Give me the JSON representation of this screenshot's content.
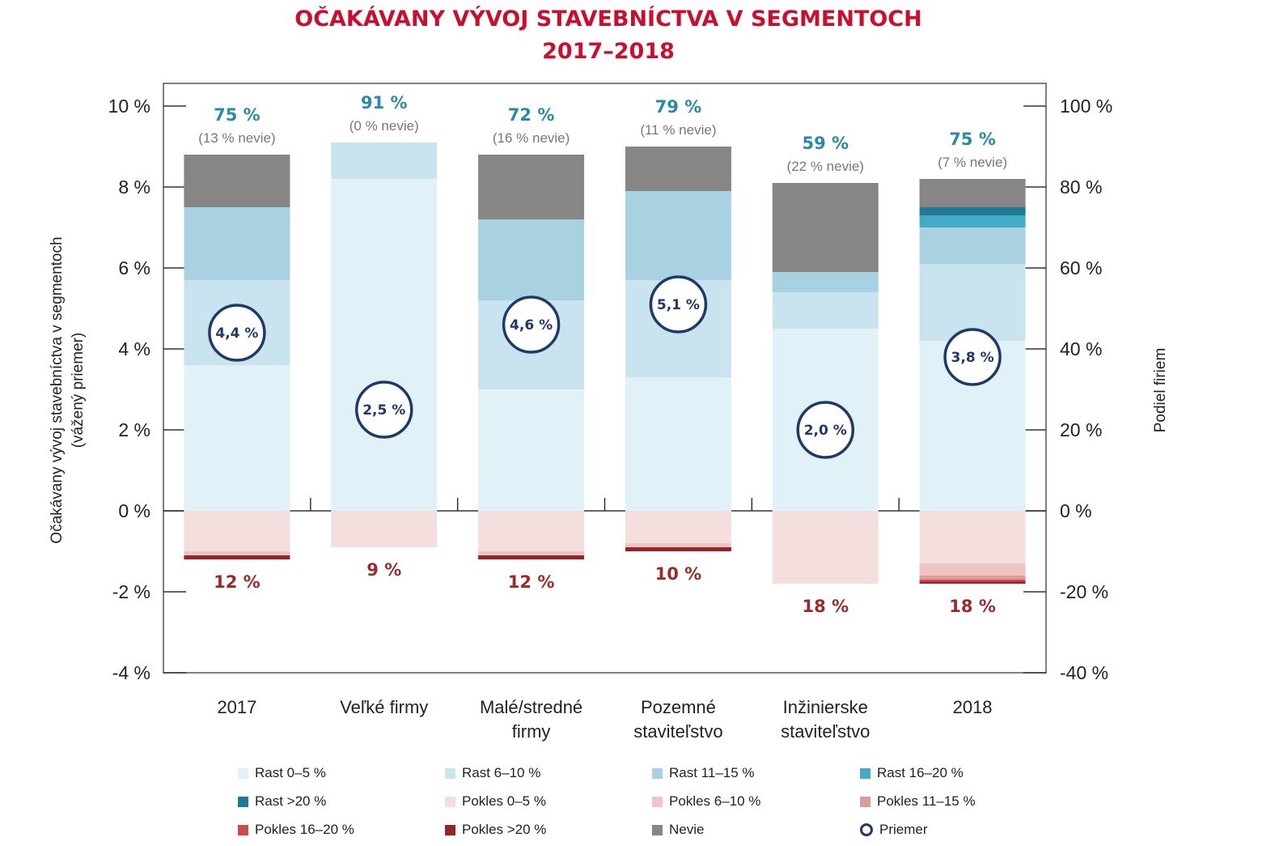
{
  "title_line1": "OČAKÁVANY VÝVOJ STAVEBNÍCTVA V SEGMENTOCH",
  "title_line2": "2017–2018",
  "chart_data": {
    "type": "bar",
    "stacked": true,
    "categories": [
      "2017",
      "Veľké firmy",
      "Malé/stredné firmy",
      "Pozemné staviteľstvo",
      "Inžinierske staviteľstvo",
      "2018"
    ],
    "category_lines": [
      [
        "2017"
      ],
      [
        "Veľké firmy"
      ],
      [
        "Malé/stredné",
        "firmy"
      ],
      [
        "Pozemné",
        "staviteľstvo"
      ],
      [
        "Inžinierske",
        "staviteľstvo"
      ],
      [
        "2018"
      ]
    ],
    "ylabel_line1": "Očakávany vývoj stavebníctva v segmentoch",
    "ylabel_line2": "(vážený priemer)",
    "y2label": "Podiel firiem",
    "ylim": [
      -4,
      10
    ],
    "y_ticks": [
      "10 %",
      "8 %",
      "6 %",
      "4 %",
      "2 %",
      "0 %",
      "-2 %",
      "-4 %"
    ],
    "y2lim": [
      -40,
      100
    ],
    "y2_ticks": [
      "100 %",
      "80 %",
      "60 %",
      "40 %",
      "20 %",
      "0 %",
      "-20 %",
      "-40 %"
    ],
    "grid": false,
    "legend_position": "bottom",
    "series": [
      {
        "name": "Rast 0–5 %",
        "color": "#e1f1f8",
        "values": [
          36,
          82,
          30,
          33,
          45,
          42
        ]
      },
      {
        "name": "Rast 6–10 %",
        "color": "#c9e4ef",
        "values": [
          21,
          9,
          22,
          24,
          9,
          19
        ]
      },
      {
        "name": "Rast 11–15 %",
        "color": "#a8d2e1",
        "values": [
          18,
          0,
          20,
          22,
          5,
          9
        ]
      },
      {
        "name": "Rast 16–20 %",
        "color": "#45aac8",
        "values": [
          0,
          0,
          0,
          0,
          0,
          3
        ]
      },
      {
        "name": "Rast >20 %",
        "color": "#1f7a96",
        "values": [
          0,
          0,
          0,
          0,
          0,
          2
        ]
      },
      {
        "name": "Pokles 0–5 %",
        "color": "#f5dede",
        "values": [
          -10,
          -9,
          -10,
          -8,
          -18,
          -13
        ]
      },
      {
        "name": "Pokles 6–10 %",
        "color": "#eec4c4",
        "values": [
          -1,
          0,
          -1,
          -1,
          0,
          -3
        ]
      },
      {
        "name": "Pokles 11–15 %",
        "color": "#dd9c9c",
        "values": [
          0,
          0,
          0,
          0,
          0,
          -1
        ]
      },
      {
        "name": "Pokles 16–20 %",
        "color": "#cf4a4a",
        "values": [
          0,
          0,
          0,
          0,
          0,
          -0.5
        ]
      },
      {
        "name": "Pokles >20 %",
        "color": "#972424",
        "values": [
          -1,
          0,
          -1,
          -1,
          0,
          -0.5
        ]
      },
      {
        "name": "Nevie",
        "color": "#878585",
        "values": [
          13,
          0,
          16,
          11,
          22,
          7
        ]
      }
    ],
    "growth_share_labels": [
      "75 %",
      "91 %",
      "72 %",
      "79 %",
      "59 %",
      "75 %"
    ],
    "dont_know_labels": [
      "(13 % nevie)",
      "(0 % nevie)",
      "(16 % nevie)",
      "(11 % nevie)",
      "(22 % nevie)",
      "(7 % nevie)"
    ],
    "decline_share_labels": [
      "12 %",
      "9 %",
      "12 %",
      "10 %",
      "18 %",
      "18 %"
    ],
    "average": {
      "name": "Priemer",
      "values": [
        4.4,
        2.5,
        4.6,
        5.1,
        2.0,
        3.8
      ],
      "labels": [
        "4,4 %",
        "2,5 %",
        "4,6 %",
        "5,1 %",
        "2,0 %",
        "3,8 %"
      ]
    }
  }
}
